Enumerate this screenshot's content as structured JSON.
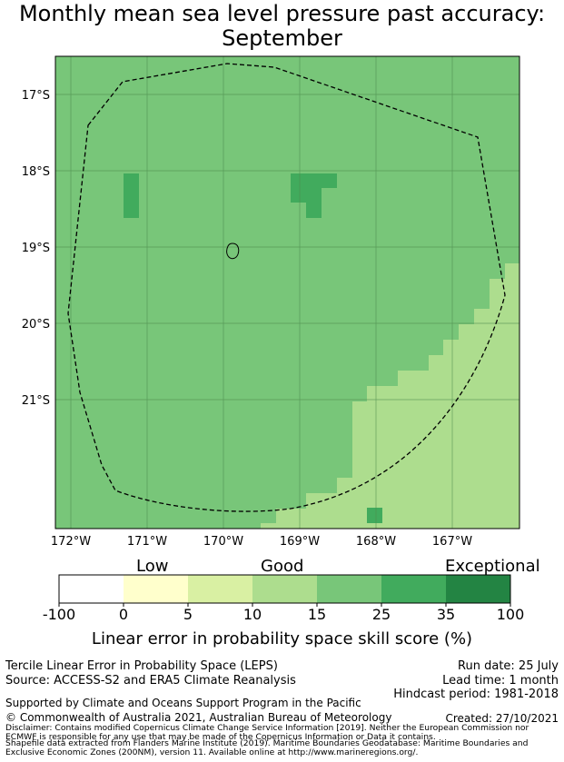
{
  "title": {
    "line1": "Monthly mean sea level pressure past accuracy:",
    "line2": "September"
  },
  "map": {
    "lat_labels": [
      "17°S",
      "18°S",
      "19°S",
      "20°S",
      "21°S"
    ],
    "lon_labels": [
      "172°W",
      "171°W",
      "170°W",
      "169°W",
      "168°W",
      "167°W"
    ],
    "colors": {
      "base": "#78c679",
      "strong": "#41ab5d",
      "light": "#addd8e",
      "grid": "#4d8a4d"
    }
  },
  "colorbar": {
    "categories": [
      "Low",
      "Good",
      "Exceptional"
    ],
    "ticks": [
      "-100",
      "0",
      "5",
      "10",
      "15",
      "25",
      "35",
      "100"
    ],
    "colors": [
      "#ffffff",
      "#ffffcc",
      "#d9f0a3",
      "#addd8e",
      "#78c679",
      "#41ab5d",
      "#238443"
    ],
    "title": "Linear error in probability space skill score (%)"
  },
  "footer": {
    "left1": "Tercile Linear Error in Probability Space (LEPS)",
    "left2": "Source: ACCESS-S2 and ERA5 Climate Reanalysis",
    "right1": "Run date: 25 July",
    "right2": "Lead time: 1 month",
    "right3": "Hindcast period: 1981-2018",
    "support": "Supported by Climate and Oceans Support Program in the Pacific",
    "copyright": "© Commonwealth of Australia 2021, Australian Bureau of Meteorology",
    "created": "Created: 27/10/2021",
    "disclaimer": "Disclaimer: Contains modified Copernicus Climate Change Service Information [2019]. Neither the European Commission nor ECMWF is responsible for any use that may be made of the Copernicus Information or Data it contains.",
    "shapefile": "Shapefile data extracted from Flanders Marine Institute (2019). Maritime Boundaries Geodatabase: Maritime Boundaries and Exclusive Economic Zones (200NM), version 11. Available online at http://www.marineregions.org/."
  }
}
